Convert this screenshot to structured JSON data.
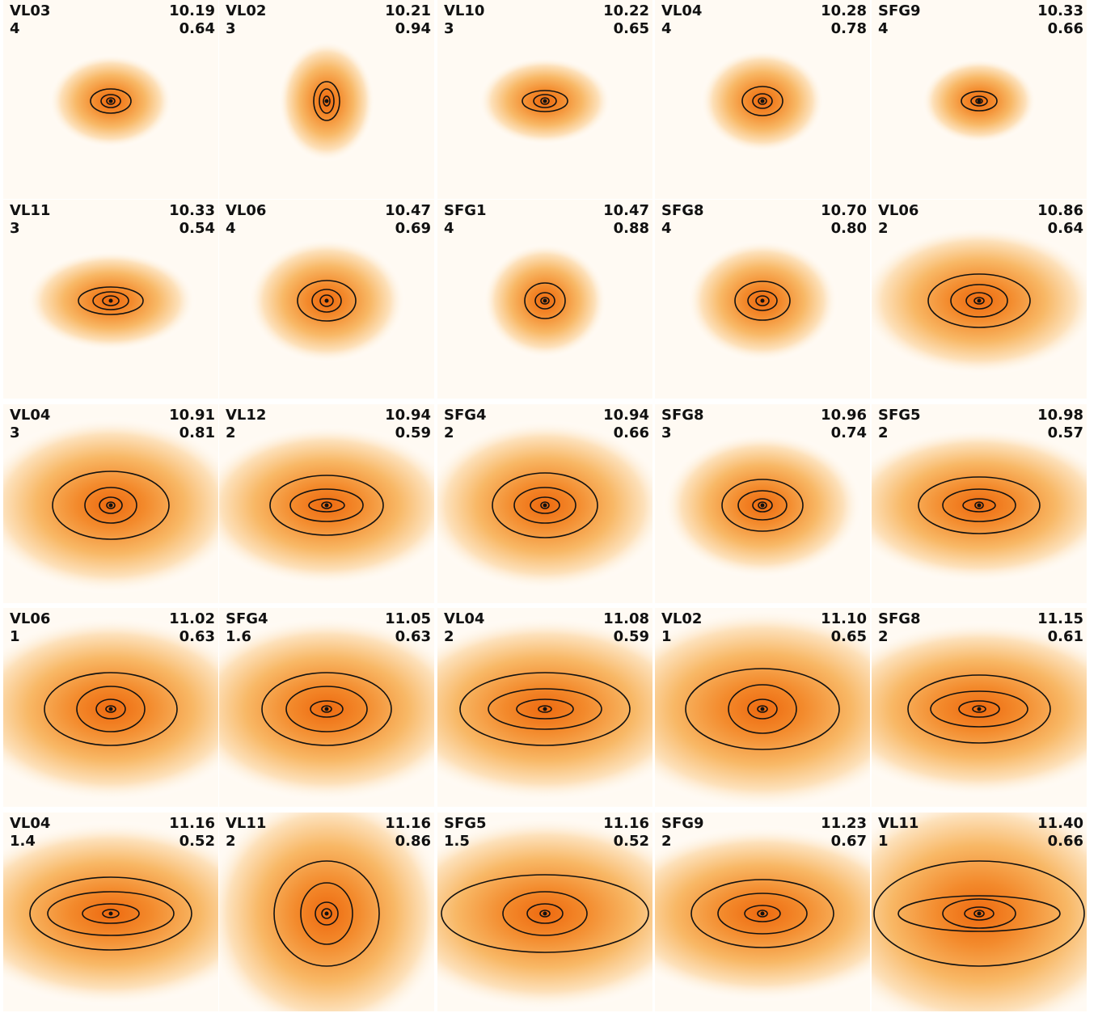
{
  "panels": [
    {
      "name": "VL03",
      "n": "4",
      "mass": "10.19",
      "ratio": "0.64"
    },
    {
      "name": "VL02",
      "n": "3",
      "mass": "10.21",
      "ratio": "0.94"
    },
    {
      "name": "VL10",
      "n": "3",
      "mass": "10.22",
      "ratio": "0.65"
    },
    {
      "name": "VL04",
      "n": "4",
      "mass": "10.28",
      "ratio": "0.78"
    },
    {
      "name": "SFG9",
      "n": "4",
      "mass": "10.33",
      "ratio": "0.66"
    },
    {
      "name": "VL11",
      "n": "3",
      "mass": "10.33",
      "ratio": "0.54"
    },
    {
      "name": "VL06",
      "n": "4",
      "mass": "10.47",
      "ratio": "0.69"
    },
    {
      "name": "SFG1",
      "n": "4",
      "mass": "10.47",
      "ratio": "0.88"
    },
    {
      "name": "SFG8",
      "n": "4",
      "mass": "10.70",
      "ratio": "0.80"
    },
    {
      "name": "VL06",
      "n": "2",
      "mass": "10.86",
      "ratio": "0.64"
    },
    {
      "name": "VL04",
      "n": "3",
      "mass": "10.91",
      "ratio": "0.81"
    },
    {
      "name": "VL12",
      "n": "2",
      "mass": "10.94",
      "ratio": "0.59"
    },
    {
      "name": "SFG4",
      "n": "2",
      "mass": "10.94",
      "ratio": "0.66"
    },
    {
      "name": "SFG8",
      "n": "3",
      "mass": "10.96",
      "ratio": "0.74"
    },
    {
      "name": "SFG5",
      "n": "2",
      "mass": "10.98",
      "ratio": "0.57"
    },
    {
      "name": "VL06",
      "n": "1",
      "mass": "11.02",
      "ratio": "0.63"
    },
    {
      "name": "SFG4",
      "n": "1.6",
      "mass": "11.05",
      "ratio": "0.63"
    },
    {
      "name": "VL04",
      "n": "2",
      "mass": "11.08",
      "ratio": "0.59"
    },
    {
      "name": "VL02",
      "n": "1",
      "mass": "11.10",
      "ratio": "0.65"
    },
    {
      "name": "SFG8",
      "n": "2",
      "mass": "11.15",
      "ratio": "0.61"
    },
    {
      "name": "VL04",
      "n": "1.4",
      "mass": "11.16",
      "ratio": "0.52"
    },
    {
      "name": "VL11",
      "n": "2",
      "mass": "11.16",
      "ratio": "0.86"
    },
    {
      "name": "SFG5",
      "n": "1.5",
      "mass": "11.16",
      "ratio": "0.52"
    },
    {
      "name": "SFG9",
      "n": "2",
      "mass": "11.23",
      "ratio": "0.67"
    },
    {
      "name": "VL11",
      "n": "1",
      "mass": "11.40",
      "ratio": "0.66"
    }
  ]
}
